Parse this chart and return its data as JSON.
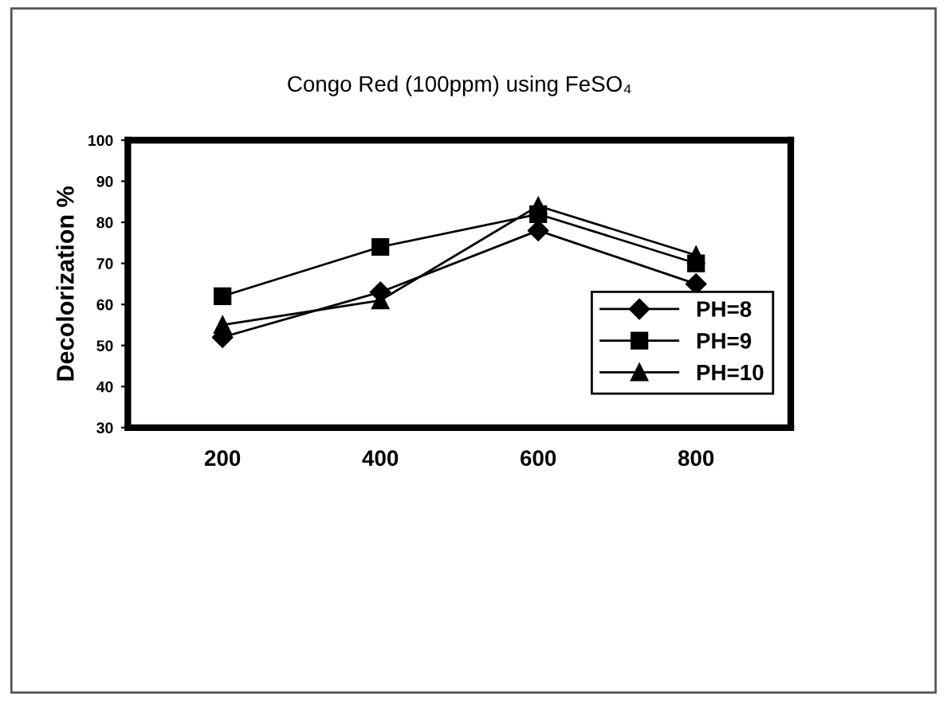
{
  "chart_data": {
    "type": "line",
    "title": "Congo Red (100ppm) using FeSO₄",
    "ylabel": "Decolorization %",
    "categories": [
      "200",
      "400",
      "600",
      "800"
    ],
    "series": [
      {
        "name": "PH=8",
        "color": "#000000",
        "marker": "diamond",
        "values": [
          52,
          63,
          78,
          65
        ]
      },
      {
        "name": "PH=9",
        "color": "#000000",
        "marker": "square",
        "values": [
          62,
          74,
          82,
          70
        ]
      },
      {
        "name": "PH=10",
        "color": "#000000",
        "marker": "triangle",
        "values": [
          55,
          61,
          84,
          72
        ]
      }
    ],
    "ylim": [
      30,
      100
    ],
    "yticks": [
      30,
      40,
      50,
      60,
      70,
      80,
      90,
      100
    ],
    "grid": false,
    "legend": "bottom right",
    "line_style": "solid"
  }
}
